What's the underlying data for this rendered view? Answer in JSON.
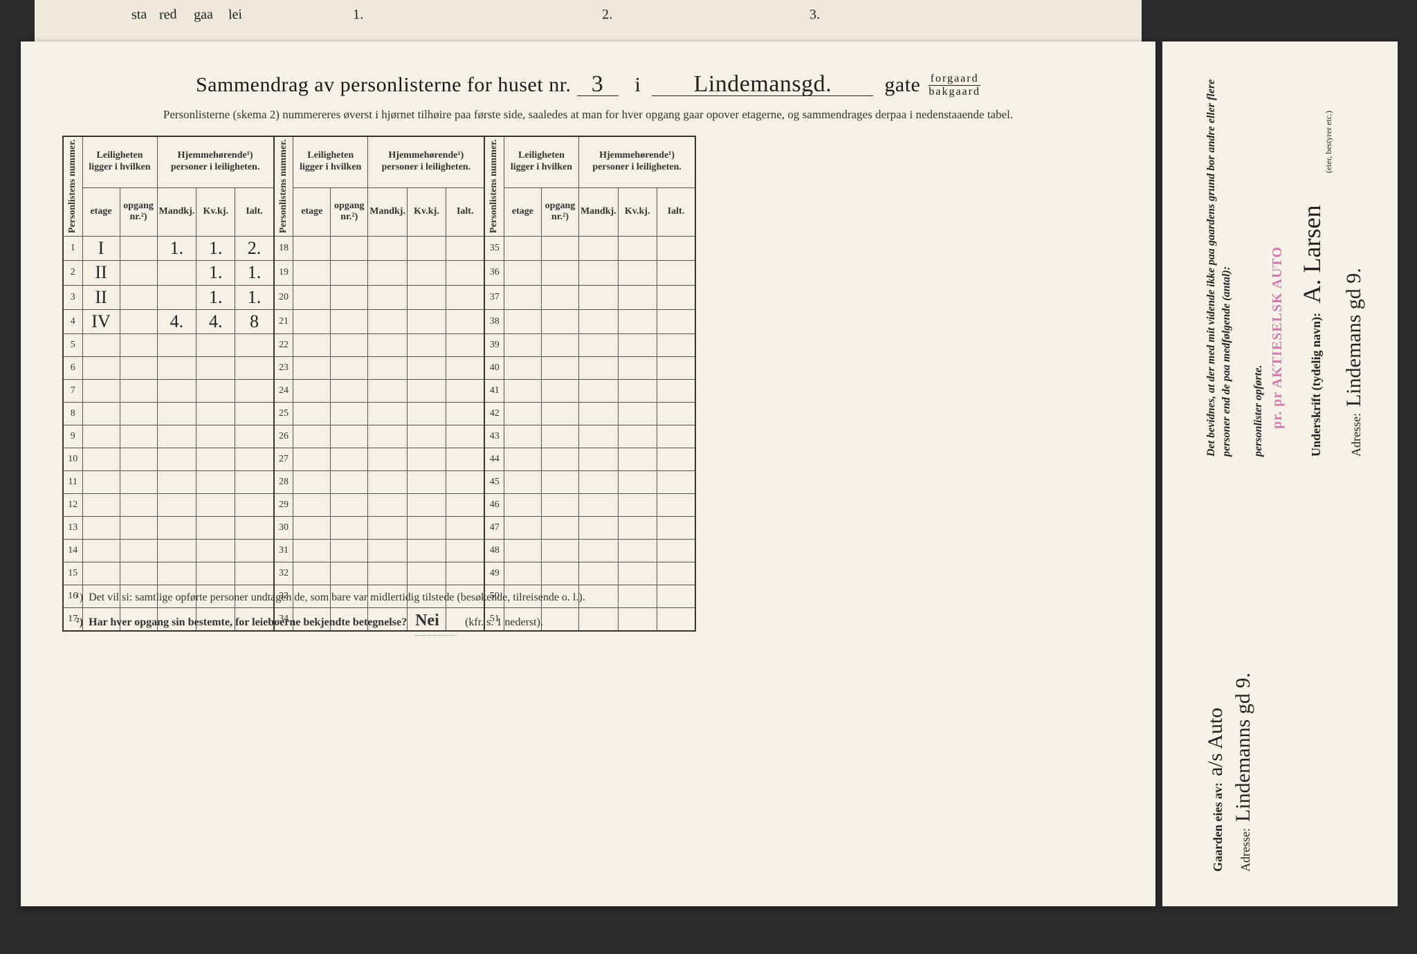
{
  "top_marks": {
    "left_fragments": [
      "sta",
      "red",
      "gaa",
      "lei"
    ],
    "nums": [
      "1.",
      "2.",
      "3."
    ]
  },
  "title": {
    "prefix": "Sammendrag av personlisterne for huset nr.",
    "house_nr": "3",
    "i": "i",
    "street": "Lindemansgd.",
    "gate": "gate",
    "forgaard": "forgaard",
    "bakgaard": "bakgaard"
  },
  "subtitle": "Personlisterne (skema 2) nummereres øverst i hjørnet tilhøire paa første side, saaledes at man for hver opgang gaar opover etagerne, og sammendrages derpaa i nedenstaaende tabel.",
  "headers": {
    "personlistens": "Personlistens nummer.",
    "leiligheten": "Leiligheten ligger i hvilken",
    "hjemme": "Hjemmehørende¹) personer i leiligheten.",
    "etage": "etage",
    "opgang": "opgang nr.²)",
    "mandkj": "Mandkj.",
    "kvkj": "Kv.kj.",
    "ialt": "Ialt."
  },
  "rows": [
    {
      "n": 1,
      "etage": "I",
      "m": "1.",
      "k": "1.",
      "i": "2."
    },
    {
      "n": 2,
      "etage": "II",
      "m": "",
      "k": "1.",
      "i": "1."
    },
    {
      "n": 3,
      "etage": "II",
      "m": "",
      "k": "1.",
      "i": "1."
    },
    {
      "n": 4,
      "etage": "IV",
      "m": "4.",
      "k": "4.",
      "i": "8"
    },
    {
      "n": 5
    },
    {
      "n": 6
    },
    {
      "n": 7
    },
    {
      "n": 8
    },
    {
      "n": 9
    },
    {
      "n": 10
    },
    {
      "n": 11
    },
    {
      "n": 12
    },
    {
      "n": 13
    },
    {
      "n": 14
    },
    {
      "n": 15
    },
    {
      "n": 16
    },
    {
      "n": 17
    }
  ],
  "rows2": [
    18,
    19,
    20,
    21,
    22,
    23,
    24,
    25,
    26,
    27,
    28,
    29,
    30,
    31,
    32,
    33,
    34
  ],
  "rows3": [
    35,
    36,
    37,
    38,
    39,
    40,
    41,
    42,
    43,
    44,
    45,
    46,
    47,
    48,
    49,
    50,
    51
  ],
  "footnotes": {
    "f1_marker": "¹)",
    "f1": "Det vil si: samtlige opførte personer undtagen de, som bare var midlertidig tilstede (besøkende, tilreisende o. l.).",
    "f2_marker": "²)",
    "f2": "Har hver opgang sin bestemte, for leieboerne bekjendte betegnelse?",
    "f2_answer": "Nei",
    "f2_suffix": "(kfr. s. 1 nederst)."
  },
  "side": {
    "gaarden": "Gaarden eies av:",
    "owner": "a/s Auto",
    "adresse_label": "Adresse:",
    "adresse1": "Lindemanns gd 9.",
    "bevidnes": "Det bevidnes, at der med mit vidende ikke paa gaardens grund bor andre eller flere personer end de paa medfølgende (antal):",
    "personlister": "personlister opførte.",
    "stamp": "pr. pr AKTIESELSK     AUTO",
    "underskrift": "Underskrift (tydelig navn):",
    "bestyrer": "(eier, bestyrer etc.)",
    "sign": "A. Larsen",
    "adresse2": "Lindemans gd 9."
  },
  "colors": {
    "paper": "#f5f1e6",
    "ink": "#1a1a1a",
    "stamp": "#d17bb0",
    "bg": "#2a2a2a"
  }
}
